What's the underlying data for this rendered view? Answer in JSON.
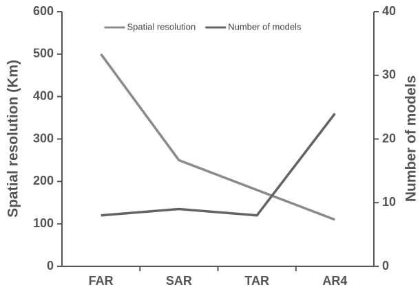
{
  "chart_data": {
    "type": "line",
    "categories": [
      "FAR",
      "SAR",
      "TAR",
      "AR4"
    ],
    "ylabel": "Spatial resolution (Km)",
    "y2label": "Number of models",
    "ylim": [
      0,
      600
    ],
    "yticks": [
      0,
      100,
      200,
      300,
      400,
      500,
      600
    ],
    "y2lim": [
      0,
      40
    ],
    "y2ticks": [
      0,
      10,
      20,
      30,
      40
    ],
    "legend": "upper center",
    "series": [
      {
        "name": "Spatial resolution",
        "color": "#8a8a8a",
        "values": [
          500,
          250,
          180,
          110
        ]
      },
      {
        "name": "Number of models",
        "color": "#636363",
        "axis": "y2",
        "values": [
          8,
          9,
          8,
          24
        ]
      }
    ]
  }
}
